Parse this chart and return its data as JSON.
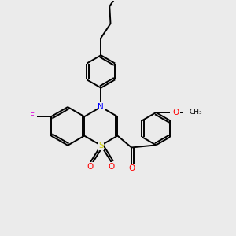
{
  "background_color": "#ebebeb",
  "atom_colors": {
    "F": "#dd00dd",
    "N": "#0000ff",
    "S": "#cccc00",
    "O": "#ff0000",
    "C": "#000000"
  },
  "bond_color": "#000000",
  "bond_width": 1.4,
  "figsize": [
    3.0,
    3.0
  ],
  "dpi": 100,
  "bl": 0.82
}
